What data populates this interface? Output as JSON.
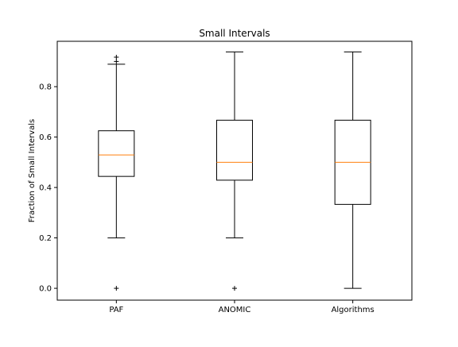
{
  "chart_data": {
    "type": "box",
    "title": "Small Intervals",
    "xlabel": "",
    "ylabel": "Fraction of Small Intervals",
    "ylim": [
      -0.047,
      0.98
    ],
    "yticks": [
      0.0,
      0.2,
      0.4,
      0.6,
      0.8
    ],
    "ytick_labels": [
      "0.0",
      "0.2",
      "0.4",
      "0.6",
      "0.8"
    ],
    "grid": false,
    "categories": [
      "PAF",
      "ANOMIC",
      "Algorithms"
    ],
    "boxes": [
      {
        "category": "PAF",
        "whislo": 0.2,
        "q1": 0.444,
        "med": 0.529,
        "q3": 0.625,
        "whishi": 0.889,
        "fliers": [
          0.0,
          0.9,
          0.917
        ]
      },
      {
        "category": "ANOMIC",
        "whislo": 0.2,
        "q1": 0.429,
        "med": 0.5,
        "q3": 0.667,
        "whishi": 0.938,
        "fliers": [
          0.0
        ]
      },
      {
        "category": "Algorithms",
        "whislo": 0.0,
        "q1": 0.333,
        "med": 0.5,
        "q3": 0.667,
        "whishi": 0.938,
        "fliers": []
      }
    ],
    "colors": {
      "box": "#000000",
      "median": "#ff7f0e"
    }
  }
}
